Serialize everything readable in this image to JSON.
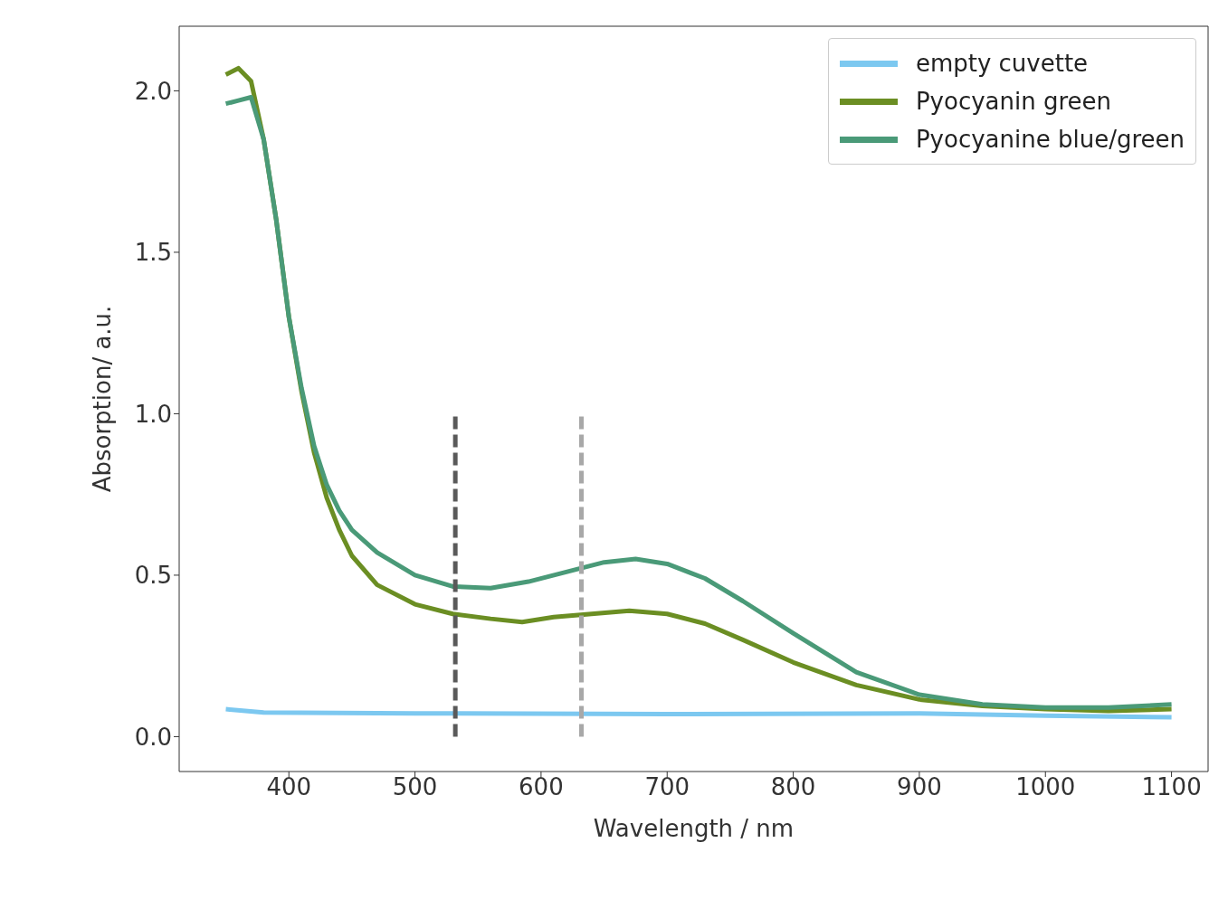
{
  "chart_data": {
    "type": "line",
    "xlabel": "Wavelength / nm",
    "ylabel": "Absorption/ a.u.",
    "xlim": [
      313,
      1129
    ],
    "ylim": [
      -0.108,
      2.2
    ],
    "xticks": [
      400,
      500,
      600,
      700,
      800,
      900,
      1000,
      1100
    ],
    "yticks": [
      {
        "value": 0,
        "label": "0.0"
      },
      {
        "value": 0.5,
        "label": "0.5"
      },
      {
        "value": 1,
        "label": "1.0"
      },
      {
        "value": 1.5,
        "label": "1.5"
      },
      {
        "value": 2,
        "label": "2.0"
      }
    ],
    "grid": false,
    "legend": "top right",
    "marker": "none",
    "series": [
      {
        "name": "empty cuvette",
        "color": "#7cc8f0",
        "x": [
          350,
          380,
          500,
          700,
          900,
          1000,
          1100
        ],
        "values": [
          0.085,
          0.075,
          0.072,
          0.07,
          0.072,
          0.065,
          0.06
        ]
      },
      {
        "name": "Pyocyanin green",
        "color": "#6b8e23",
        "x": [
          350,
          360,
          370,
          380,
          390,
          400,
          410,
          420,
          430,
          440,
          450,
          470,
          500,
          530,
          560,
          585,
          610,
          640,
          670,
          700,
          730,
          760,
          800,
          850,
          900,
          950,
          1000,
          1050,
          1100
        ],
        "values": [
          2.05,
          2.07,
          2.03,
          1.85,
          1.6,
          1.3,
          1.07,
          0.88,
          0.74,
          0.64,
          0.56,
          0.47,
          0.41,
          0.38,
          0.365,
          0.355,
          0.37,
          0.38,
          0.39,
          0.38,
          0.35,
          0.3,
          0.23,
          0.16,
          0.115,
          0.095,
          0.085,
          0.08,
          0.085
        ]
      },
      {
        "name": "Pyocyanine blue/green",
        "color": "#4a9a78",
        "x": [
          350,
          360,
          370,
          380,
          390,
          400,
          410,
          420,
          430,
          440,
          450,
          470,
          500,
          530,
          560,
          590,
          620,
          650,
          675,
          700,
          730,
          760,
          800,
          850,
          900,
          950,
          1000,
          1050,
          1100
        ],
        "values": [
          1.96,
          1.97,
          1.98,
          1.85,
          1.6,
          1.3,
          1.08,
          0.9,
          0.78,
          0.7,
          0.64,
          0.57,
          0.5,
          0.465,
          0.46,
          0.48,
          0.51,
          0.54,
          0.55,
          0.535,
          0.49,
          0.42,
          0.32,
          0.2,
          0.13,
          0.1,
          0.09,
          0.09,
          0.1
        ]
      },
      {
        "color": "#5a5a5a",
        "line_style": "dashed",
        "x": [
          532,
          532
        ],
        "values": [
          0,
          1
        ]
      },
      {
        "color": "#a8a8a8",
        "line_style": "dashed",
        "x": [
          632,
          632
        ],
        "values": [
          0,
          1
        ]
      }
    ]
  }
}
